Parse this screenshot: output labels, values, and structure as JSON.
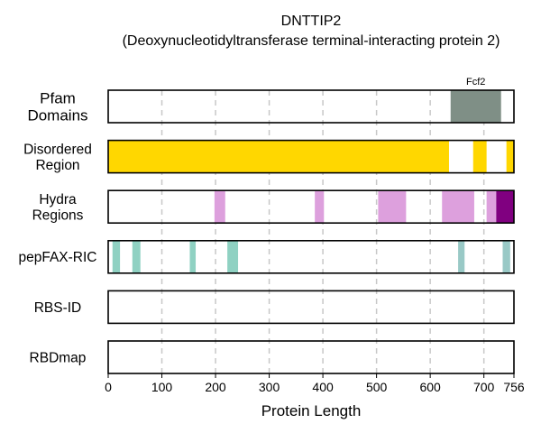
{
  "chart_data": {
    "type": "bar",
    "title": "DNTTIP2",
    "subtitle": "(Deoxynucleotidyltransferase terminal-interacting protein 2)",
    "xlabel": "Protein Length",
    "xlim": [
      0,
      756
    ],
    "xticks": [
      0,
      100,
      200,
      300,
      400,
      500,
      600,
      700,
      756
    ],
    "grid_x": [
      100,
      200,
      300,
      400,
      500,
      600,
      700
    ],
    "tracks": [
      {
        "label": [
          "Pfam",
          "Domains"
        ],
        "segments": [
          {
            "start": 638,
            "end": 732,
            "color": "#7f8f86",
            "label": "Fcf2"
          }
        ]
      },
      {
        "label": [
          "Disordered",
          "Region"
        ],
        "segments": [
          {
            "start": 0,
            "end": 635,
            "color": "#ffd700"
          },
          {
            "start": 680,
            "end": 705,
            "color": "#ffd700"
          },
          {
            "start": 742,
            "end": 756,
            "color": "#ffd700"
          }
        ]
      },
      {
        "label": [
          "Hydra",
          "Regions"
        ],
        "segments": [
          {
            "start": 198,
            "end": 218,
            "color": "#dda0dd"
          },
          {
            "start": 385,
            "end": 402,
            "color": "#dda0dd"
          },
          {
            "start": 503,
            "end": 555,
            "color": "#dda0dd"
          },
          {
            "start": 622,
            "end": 682,
            "color": "#dda0dd"
          },
          {
            "start": 705,
            "end": 723,
            "color": "#dda0dd"
          },
          {
            "start": 723,
            "end": 756,
            "color": "#800080"
          }
        ]
      },
      {
        "label": [
          "pepFAX-RIC"
        ],
        "segments": [
          {
            "start": 8,
            "end": 22,
            "color": "#8fd1c2"
          },
          {
            "start": 45,
            "end": 60,
            "color": "#8fd1c2"
          },
          {
            "start": 152,
            "end": 163,
            "color": "#8fd1c2"
          },
          {
            "start": 222,
            "end": 242,
            "color": "#8fd1c2"
          },
          {
            "start": 652,
            "end": 664,
            "color": "#99c9c6"
          },
          {
            "start": 735,
            "end": 749,
            "color": "#99c9c6"
          }
        ]
      },
      {
        "label": [
          "RBS-ID"
        ],
        "segments": []
      },
      {
        "label": [
          "RBDmap"
        ],
        "segments": []
      }
    ]
  }
}
